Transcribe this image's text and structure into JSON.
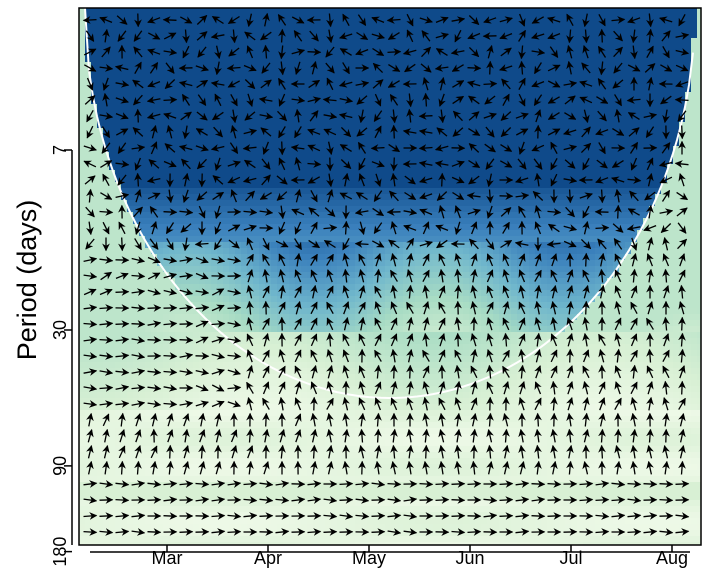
{
  "chart_data": {
    "type": "heatmap",
    "title": "",
    "xlabel": "",
    "ylabel": "Period (days)",
    "y_scale": "log",
    "x_ticks": [
      "Mar",
      "Apr",
      "May",
      "Jun",
      "Jul",
      "Aug"
    ],
    "y_ticks": [
      "7",
      "30",
      "90",
      "180"
    ],
    "ylim": [
      2.5,
      180
    ],
    "colorscale": [
      "#fcfff4",
      "#d8f0d4",
      "#a8dcc4",
      "#6fb6cc",
      "#3a80bc",
      "#0f4a8a"
    ],
    "cone_of_influence_color": "#ffffff",
    "phase_arrow_color": "#000000",
    "power_regions": [
      {
        "description_period_range_days": [
          2.5,
          14
        ],
        "level": 1.0
      },
      {
        "description_period_range_days": [
          14,
          30
        ],
        "level": 0.75
      },
      {
        "description_period_range_days": [
          30,
          50
        ],
        "level": 0.3
      },
      {
        "description_period_range_days": [
          50,
          180
        ],
        "level": 0.08
      }
    ]
  }
}
